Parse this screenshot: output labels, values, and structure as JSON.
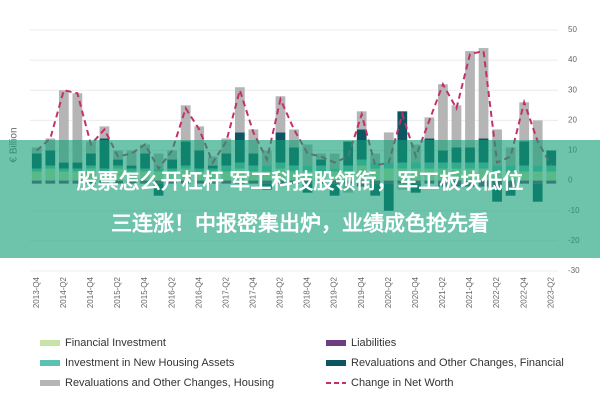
{
  "chart_data": {
    "type": "bar",
    "stacked": true,
    "y_label": "€ Billion",
    "categories": [
      "2013-Q4",
      null,
      "2014-Q2",
      null,
      "2014-Q4",
      null,
      "2015-Q2",
      null,
      "2015-Q4",
      null,
      "2016-Q2",
      null,
      "2016-Q4",
      null,
      "2017-Q2",
      null,
      "2017-Q4",
      null,
      "2018-Q2",
      null,
      "2018-Q4",
      null,
      "2019-Q2",
      null,
      "2019-Q4",
      null,
      "2020-Q2",
      null,
      "2020-Q4",
      null,
      "2021-Q2",
      null,
      "2021-Q4",
      null,
      "2022-Q2",
      null,
      "2022-Q4",
      null,
      "2023-Q2"
    ],
    "series": [
      {
        "name": "Financial Investment",
        "color": "#c8e3a6",
        "values": [
          3,
          4,
          3,
          3,
          4,
          3,
          4,
          3,
          3,
          3,
          3,
          4,
          3,
          3,
          3,
          4,
          3,
          3,
          4,
          3,
          3,
          3,
          3,
          3,
          5,
          4,
          4,
          4,
          4,
          4,
          4,
          4,
          4,
          4,
          3,
          3,
          3,
          3,
          3
        ]
      },
      {
        "name": "Liabilities",
        "color": "#6e3f80",
        "values": [
          -1,
          -1,
          -1,
          -1,
          -1,
          -1,
          -1,
          -1,
          -1,
          -1,
          -1,
          -1,
          -1,
          -1,
          -1,
          -1,
          -1,
          -1,
          -1,
          -1,
          -1,
          -1,
          -1,
          -1,
          -2,
          -1,
          -1,
          -1,
          -1,
          -1,
          -2,
          -2,
          -2,
          -2,
          -2,
          -2,
          -1,
          -1,
          -1
        ]
      },
      {
        "name": "Investment in New Housing Assets",
        "color": "#5cc1b1",
        "values": [
          1,
          1,
          1,
          1,
          1,
          1,
          1,
          1,
          1,
          1,
          1,
          1,
          1,
          1,
          2,
          2,
          2,
          2,
          2,
          2,
          2,
          2,
          1,
          2,
          2,
          2,
          2,
          2,
          2,
          2,
          2,
          2,
          2,
          2,
          2,
          2,
          2,
          2,
          2
        ]
      },
      {
        "name": "Revaluations and Other Changes, Financial",
        "color": "#0d5561",
        "values": [
          5,
          5,
          2,
          2,
          4,
          10,
          2,
          1,
          5,
          -4,
          3,
          8,
          6,
          1,
          4,
          10,
          4,
          -2,
          10,
          6,
          -3,
          2,
          -4,
          8,
          10,
          -4,
          -9,
          17,
          -3,
          8,
          4,
          5,
          5,
          8,
          -5,
          -3,
          8,
          -6,
          5
        ]
      },
      {
        "name": "Revaluations and Other Changes, Housing",
        "color": "#b5b5b5",
        "values": [
          2,
          4,
          24,
          23,
          4,
          4,
          3,
          5,
          3,
          5,
          3,
          12,
          8,
          3,
          5,
          15,
          8,
          5,
          12,
          6,
          7,
          2,
          5,
          -3,
          6,
          3,
          10,
          -2,
          6,
          7,
          22,
          14,
          32,
          30,
          12,
          6,
          13,
          15,
          0
        ]
      },
      {
        "name": "Change in Net Worth",
        "color": "#c4306c",
        "type": "line",
        "values": [
          10,
          14,
          30,
          29,
          12,
          17,
          8,
          9,
          12,
          4,
          10,
          24,
          17,
          6,
          13,
          30,
          16,
          7,
          27,
          17,
          9,
          8,
          6,
          8,
          22,
          5,
          6,
          22,
          8,
          20,
          32,
          24,
          42,
          43,
          6,
          8,
          26,
          13,
          5
        ]
      }
    ],
    "ylim": [
      -30,
      50
    ],
    "yticks": [
      -30,
      -20,
      -10,
      0,
      10,
      20,
      30,
      40,
      50
    ],
    "grid": true
  },
  "overlay": {
    "lines": [
      "股票怎么开杠杆 军工科技股领衔，军工板块低位",
      "三连涨！中报密集出炉，业绩成色抢先看"
    ]
  }
}
